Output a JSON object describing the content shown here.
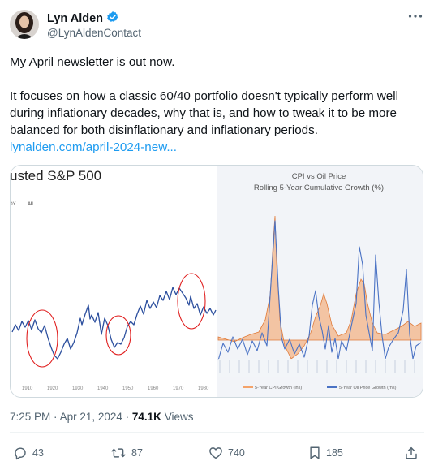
{
  "author": {
    "name": "Lyn Alden",
    "handle": "@LynAldenContact"
  },
  "tweet": {
    "line1": "My April newsletter is out now.",
    "line2": "It focuses on how a classic 60/40 portfolio doesn't typically perform well during inflationary decades, why that is, and how to tweak it to be more balanced for both disinflationary and inflationary periods.",
    "link": "lynalden.com/april-2024-new..."
  },
  "left_chart": {
    "title": "usted S&P 500",
    "range_tab_1": "OY",
    "range_tab_2": "All",
    "x_ticks": [
      "1910",
      "1920",
      "1930",
      "1940",
      "1950",
      "1960",
      "1970",
      "1980"
    ]
  },
  "right_chart": {
    "title": "CPI vs Oil Price",
    "subtitle": "Rolling 5-Year Cumulative Growth (%)",
    "legend_cpi": "5-Year CPI Growth (lhs)",
    "legend_oil": "5-Year Oil Price Growth (rhs)",
    "color_cpi": "#f4a36a",
    "color_oil": "#4a72c4"
  },
  "meta": {
    "time": "7:25 PM",
    "date": "Apr 21, 2024",
    "views_count": "74.1K",
    "views_label": "Views",
    "sep": "·"
  },
  "actions": {
    "replies": "43",
    "reposts": "87",
    "likes": "740",
    "bookmarks": "185"
  },
  "colors": {
    "link": "#1d9bf0",
    "verified": "#1d9bf0",
    "chart_line": "#2c4f9e",
    "circle": "#e02020"
  }
}
